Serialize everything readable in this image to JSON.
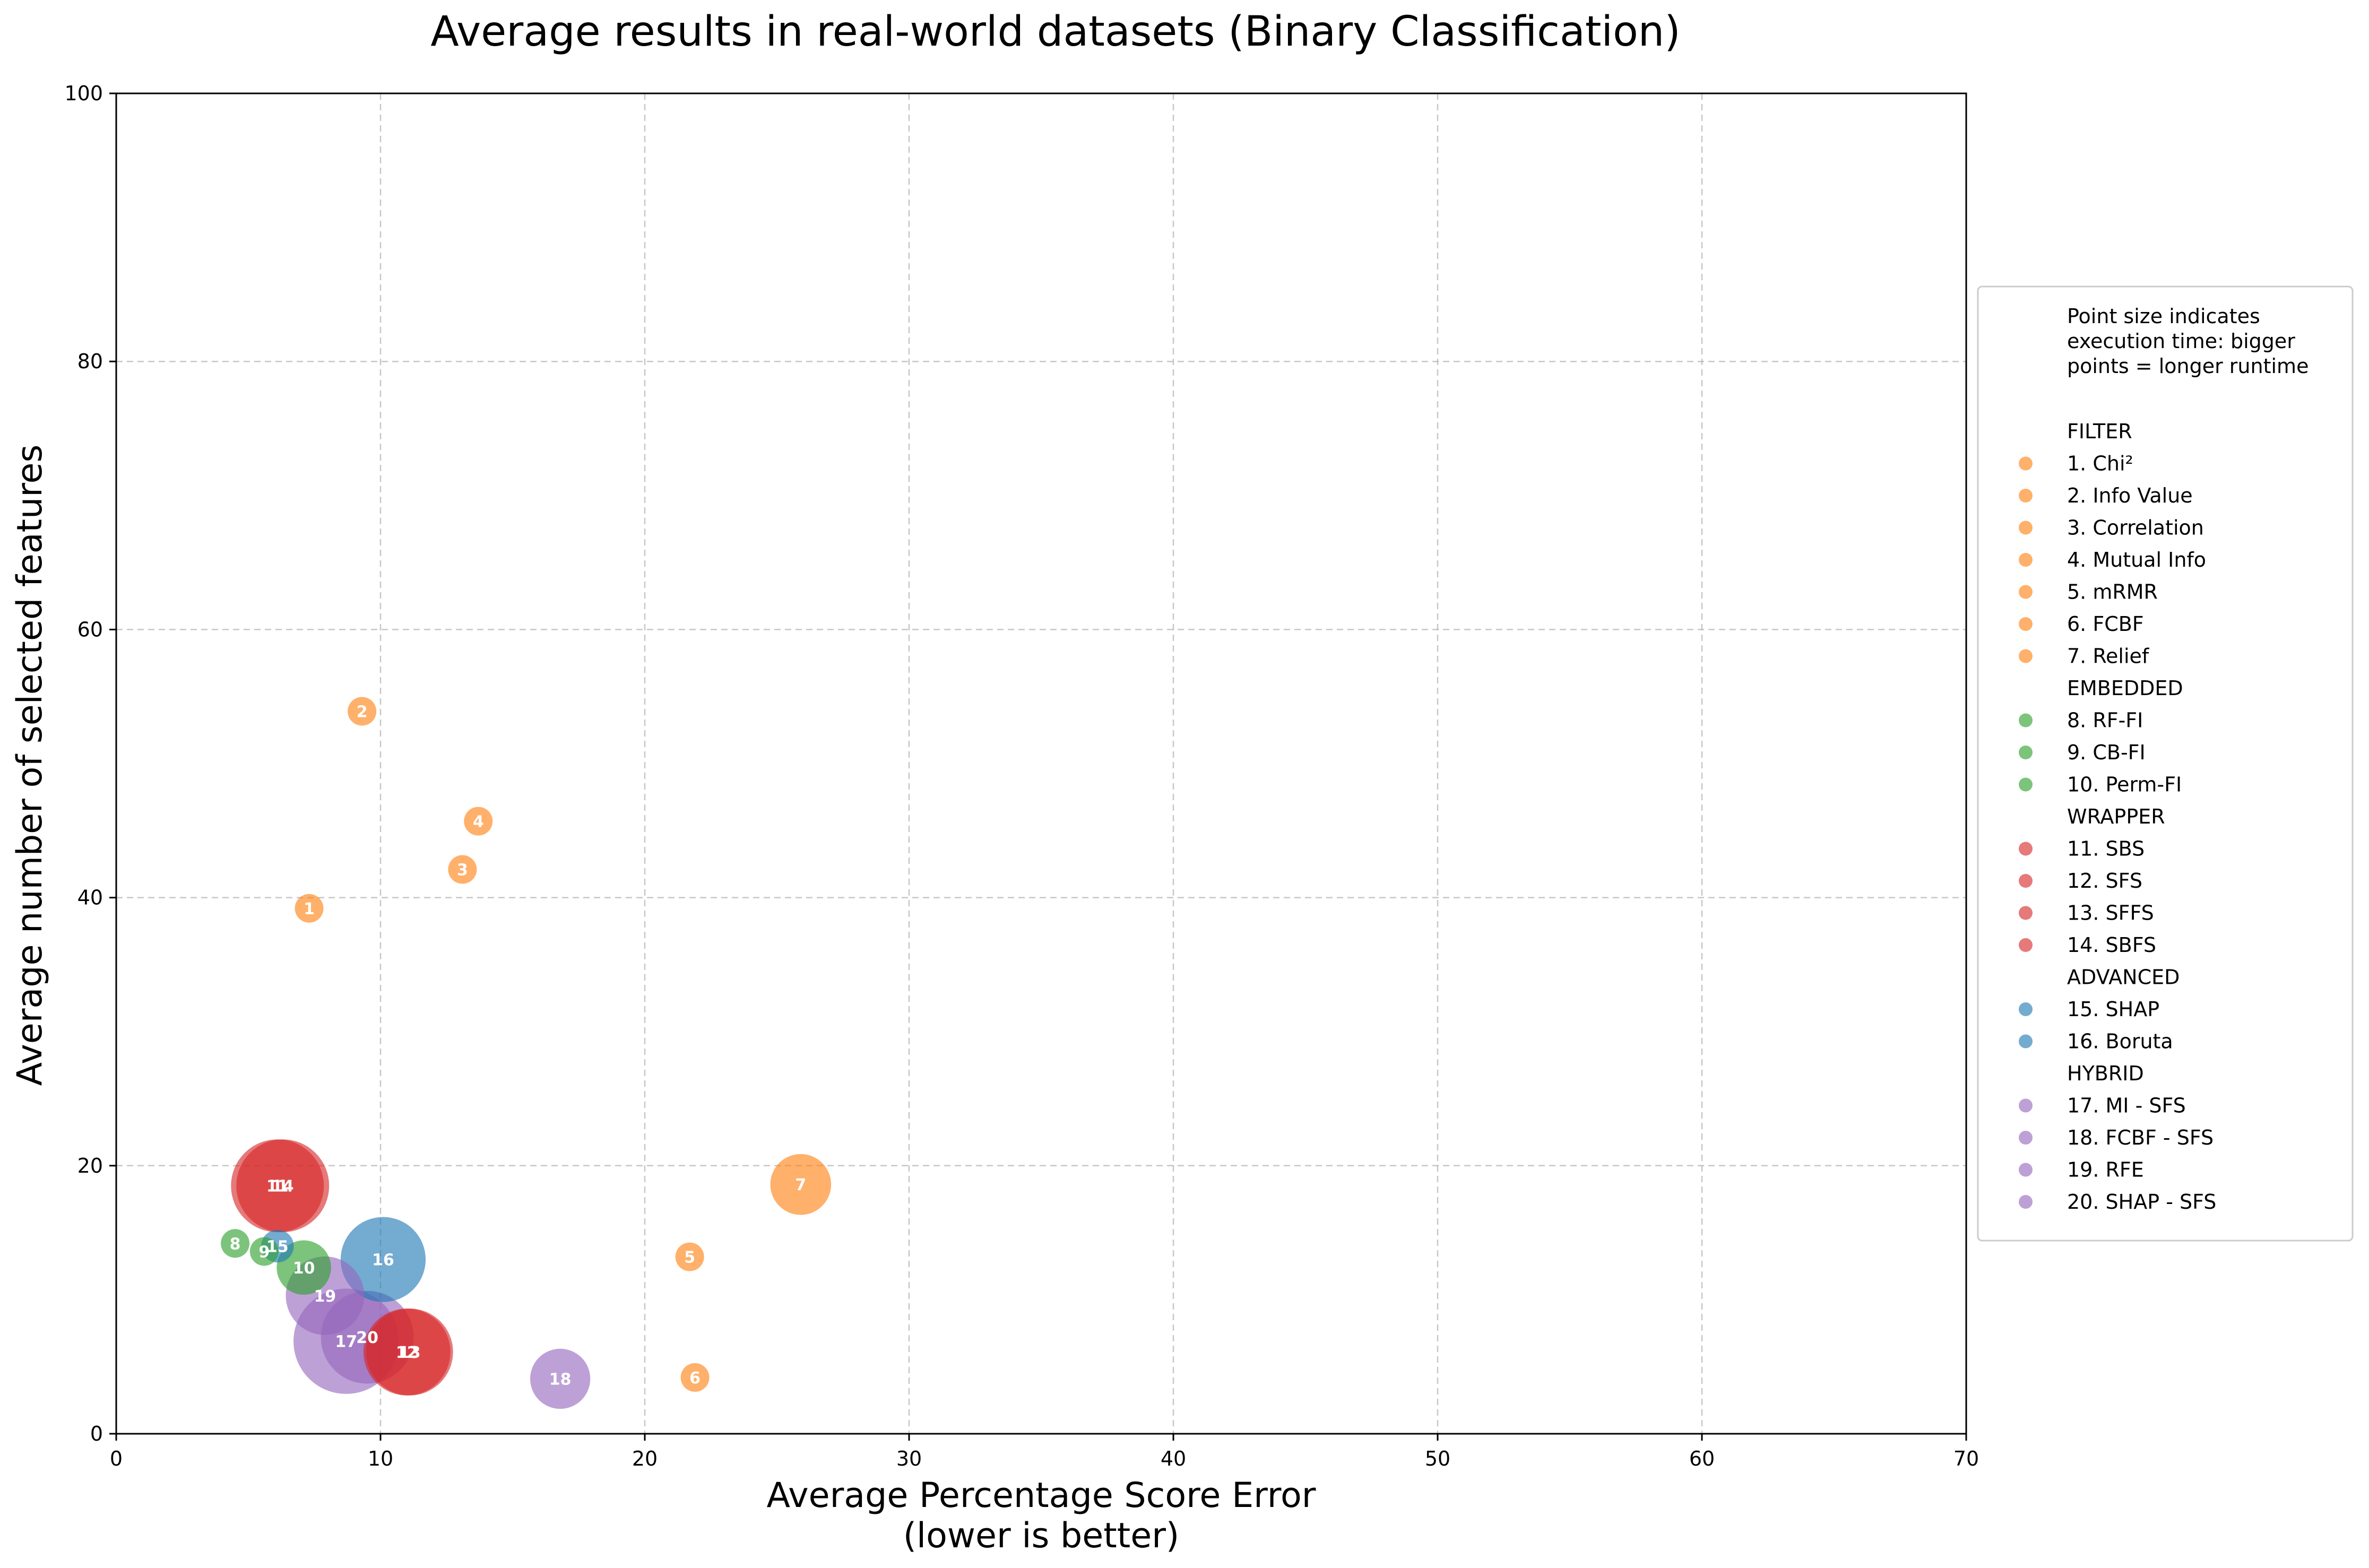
{
  "chart_data": {
    "type": "scatter",
    "title": "Average results in real-world datasets (Binary Classification)",
    "xlabel": "Average Percentage Score Error",
    "xlabel_line2": "(lower is better)",
    "ylabel": "Average number of selected features",
    "xlim": [
      0,
      70
    ],
    "ylim": [
      0,
      100
    ],
    "x_ticks": [
      0,
      10,
      20,
      30,
      40,
      50,
      60,
      70
    ],
    "y_ticks": [
      0,
      20,
      40,
      60,
      80,
      100
    ],
    "grid": true,
    "legend_position": "right",
    "legend_note": [
      "Point size indicates",
      "execution time: bigger",
      "points = longer runtime"
    ],
    "size_encodes": "execution time (relative)",
    "groups": [
      {
        "name": "FILTER",
        "color": "#ff7f0e"
      },
      {
        "name": "EMBEDDED",
        "color": "#2ca02c"
      },
      {
        "name": "WRAPPER",
        "color": "#d62728"
      },
      {
        "name": "ADVANCED",
        "color": "#1f77b4"
      },
      {
        "name": "HYBRID",
        "color": "#9467bd"
      }
    ],
    "points": [
      {
        "id": 1,
        "label": "1. Chi²",
        "group": "FILTER",
        "x": 7.3,
        "y": 39.2,
        "time": 1
      },
      {
        "id": 2,
        "label": "2. Info Value",
        "group": "FILTER",
        "x": 9.3,
        "y": 53.9,
        "time": 1
      },
      {
        "id": 3,
        "label": "3. Correlation",
        "group": "FILTER",
        "x": 13.1,
        "y": 42.1,
        "time": 1
      },
      {
        "id": 4,
        "label": "4. Mutual Info",
        "group": "FILTER",
        "x": 13.7,
        "y": 45.7,
        "time": 1
      },
      {
        "id": 5,
        "label": "5. mRMR",
        "group": "FILTER",
        "x": 21.7,
        "y": 13.2,
        "time": 1
      },
      {
        "id": 6,
        "label": "6. FCBF",
        "group": "FILTER",
        "x": 21.9,
        "y": 4.2,
        "time": 1
      },
      {
        "id": 7,
        "label": "7. Relief",
        "group": "FILTER",
        "x": 25.9,
        "y": 18.6,
        "time": 4.5
      },
      {
        "id": 8,
        "label": "8. RF-FI",
        "group": "EMBEDDED",
        "x": 4.5,
        "y": 14.2,
        "time": 1
      },
      {
        "id": 9,
        "label": "9. CB-FI",
        "group": "EMBEDDED",
        "x": 5.6,
        "y": 13.6,
        "time": 1
      },
      {
        "id": 10,
        "label": "10. Perm-FI",
        "group": "EMBEDDED",
        "x": 7.1,
        "y": 12.4,
        "time": 3.6
      },
      {
        "id": 11,
        "label": "11. SBS",
        "group": "WRAPPER",
        "x": 6.1,
        "y": 18.5,
        "time": 10.5
      },
      {
        "id": 12,
        "label": "12. SFS",
        "group": "WRAPPER",
        "x": 11.0,
        "y": 6.1,
        "time": 9.2
      },
      {
        "id": 13,
        "label": "13. SFFS",
        "group": "WRAPPER",
        "x": 11.1,
        "y": 6.1,
        "time": 9.2
      },
      {
        "id": 14,
        "label": "14. SBFS",
        "group": "WRAPPER",
        "x": 6.3,
        "y": 18.5,
        "time": 10.5
      },
      {
        "id": 15,
        "label": "15. SHAP",
        "group": "ADVANCED",
        "x": 6.1,
        "y": 14.0,
        "time": 1.3
      },
      {
        "id": 16,
        "label": "16. Boruta",
        "group": "ADVANCED",
        "x": 10.1,
        "y": 13.0,
        "time": 8.8
      },
      {
        "id": 17,
        "label": "17. MI - SFS",
        "group": "HYBRID",
        "x": 8.7,
        "y": 6.9,
        "time": 13.5
      },
      {
        "id": 18,
        "label": "18. FCBF - SFS",
        "group": "HYBRID",
        "x": 16.8,
        "y": 4.1,
        "time": 4.4
      },
      {
        "id": 19,
        "label": "19. RFE",
        "group": "HYBRID",
        "x": 7.9,
        "y": 10.3,
        "time": 7.5
      },
      {
        "id": 20,
        "label": "20. SHAP - SFS",
        "group": "HYBRID",
        "x": 9.5,
        "y": 7.2,
        "time": 10.5
      }
    ]
  }
}
